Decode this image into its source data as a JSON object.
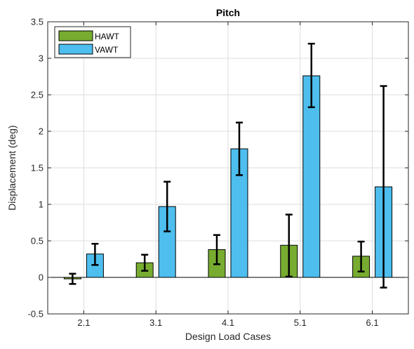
{
  "chart_data": {
    "type": "bar",
    "title": "Pitch",
    "xlabel": "Design Load Cases",
    "ylabel": "Displacement (deg)",
    "categories": [
      "2.1",
      "3.1",
      "4.1",
      "5.1",
      "6.1"
    ],
    "ylim": [
      -0.5,
      3.5
    ],
    "yticks": [
      -0.5,
      0,
      0.5,
      1,
      1.5,
      2,
      2.5,
      3,
      3.5
    ],
    "grid": true,
    "legend_position": "top-left",
    "series": [
      {
        "name": "HAWT",
        "color": "#77ac30",
        "values": [
          -0.02,
          0.2,
          0.38,
          0.44,
          0.29
        ],
        "err_low": [
          -0.09,
          0.09,
          0.18,
          0.01,
          0.08
        ],
        "err_high": [
          0.05,
          0.31,
          0.58,
          0.86,
          0.49
        ]
      },
      {
        "name": "VAWT",
        "color": "#4dbeee",
        "values": [
          0.32,
          0.97,
          1.76,
          2.76,
          1.24
        ],
        "err_low": [
          0.17,
          0.63,
          1.4,
          2.33,
          -0.14
        ],
        "err_high": [
          0.46,
          1.31,
          2.12,
          3.2,
          2.62
        ]
      }
    ]
  }
}
